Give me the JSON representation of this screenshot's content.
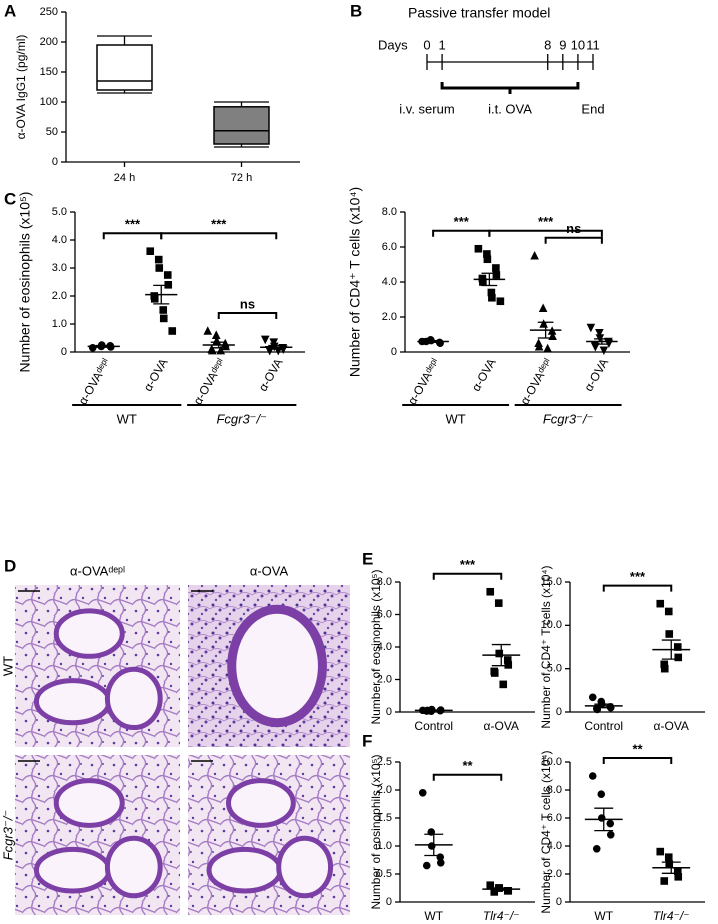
{
  "chart_data": [
    {
      "type": "box",
      "panel": "A",
      "ylabel": "α-OVA IgG1 (pg/ml)",
      "categories": [
        "24 h",
        "72 h"
      ],
      "min": [
        115,
        25
      ],
      "q1": [
        120,
        30
      ],
      "median": [
        135,
        52
      ],
      "q3": [
        195,
        92
      ],
      "max": [
        210,
        100
      ],
      "colors": [
        "#ffffff",
        "#808080"
      ],
      "ylim": [
        0,
        250
      ],
      "yticks": [
        0,
        50,
        100,
        150,
        200,
        250
      ]
    },
    {
      "type": "timeline",
      "panel": "B",
      "title": "Passive transfer model",
      "axis_label": "Days",
      "xlim": [
        0,
        11
      ],
      "xticks": [
        0,
        1,
        8,
        9,
        10,
        11
      ],
      "annotations": [
        {
          "x": 0,
          "label": "i.v. serum"
        },
        {
          "from": 1,
          "to": 10,
          "label": "i.t. OVA"
        },
        {
          "x": 11,
          "label": "End"
        }
      ]
    },
    {
      "type": "dot",
      "panel": "C",
      "ylabel": "Number of eosinophils (x10⁵)",
      "ylim": [
        0,
        5
      ],
      "yticks": [
        0,
        {
          "value": 1,
          "label": "1.0"
        },
        {
          "value": 2,
          "label": "2.0"
        },
        {
          "value": 3,
          "label": "3.0"
        },
        {
          "value": 4,
          "label": "4.0"
        },
        {
          "value": 5,
          "label": "5.0"
        }
      ],
      "categories": [
        "α-OVAᵈᵉᵖˡ",
        "α-OVA",
        "α-OVAᵈᵉᵖˡ",
        "α-OVA"
      ],
      "markers": [
        "circle",
        "square",
        "triangle",
        "triangle-down"
      ],
      "points": [
        [
          0.15,
          0.2,
          0.25,
          0.22,
          0.18
        ],
        [
          3.6,
          3.3,
          3.0,
          2.75,
          2.4,
          2.0,
          1.9,
          1.5,
          1.2,
          0.75
        ],
        [
          0.75,
          0.6,
          0.4,
          0.3,
          0.2,
          0.1,
          0.05,
          0.05
        ],
        [
          0.45,
          0.35,
          0.2,
          0.15,
          0.1,
          0.08,
          0.05,
          0.05
        ]
      ],
      "means": [
        0.2,
        2.05,
        0.25,
        0.17
      ],
      "sems": [
        0.03,
        0.33,
        0.1,
        0.06
      ],
      "comparisons": [
        {
          "pair": [
            0,
            1
          ],
          "label": "***"
        },
        {
          "pair": [
            1,
            3
          ],
          "label": "***"
        },
        {
          "pair": [
            2,
            3
          ],
          "label": "ns"
        }
      ],
      "groups": [
        {
          "label": "WT",
          "categories": [
            0,
            1
          ]
        },
        {
          "label": "Fcgr3⁻/⁻",
          "categories": [
            2,
            3
          ]
        }
      ]
    },
    {
      "type": "dot",
      "ylabel": "Number of CD4⁺ T cells (x10⁴)",
      "ylim": [
        0,
        8
      ],
      "yticks": [
        0,
        {
          "value": 2,
          "label": "2.0"
        },
        {
          "value": 4,
          "label": "4.0"
        },
        {
          "value": 6,
          "label": "6.0"
        },
        {
          "value": 8,
          "label": "8.0"
        }
      ],
      "categories": [
        "α-OVAᵈᵉᵖˡ",
        "α-OVA",
        "α-OVAᵈᵉᵖˡ",
        "α-OVA"
      ],
      "markers": [
        "circle",
        "square",
        "triangle",
        "triangle-down"
      ],
      "points": [
        [
          0.6,
          0.7,
          0.65,
          0.55,
          0.5,
          0.6
        ],
        [
          5.9,
          5.6,
          5.3,
          4.8,
          4.4,
          4.2,
          4.0,
          3.4,
          3.1,
          2.9
        ],
        [
          5.5,
          2.5,
          1.6,
          1.2,
          0.9,
          0.5,
          0.3,
          0.2
        ],
        [
          1.4,
          1.1,
          0.8,
          0.6,
          0.5,
          0.4,
          0.3,
          0.1
        ]
      ],
      "means": [
        0.6,
        4.15,
        1.25,
        0.6
      ],
      "sems": [
        0.05,
        0.35,
        0.45,
        0.15
      ],
      "comparisons": [
        {
          "pair": [
            0,
            1
          ],
          "label": "***"
        },
        {
          "pair": [
            1,
            3
          ],
          "label": "***"
        },
        {
          "pair": [
            2,
            3
          ],
          "label": "ns"
        }
      ],
      "groups": [
        {
          "label": "WT",
          "categories": [
            0,
            1
          ]
        },
        {
          "label": "Fcgr3⁻/⁻",
          "categories": [
            2,
            3
          ]
        }
      ]
    },
    {
      "type": "dot",
      "panel": "E",
      "ylabel": "Number of eosinophils (x10⁵)",
      "ylim": [
        0,
        8
      ],
      "yticks": [
        0,
        {
          "value": 2,
          "label": "2.0"
        },
        {
          "value": 4,
          "label": "4.0"
        },
        {
          "value": 6,
          "label": "6.0"
        },
        {
          "value": 8,
          "label": "8.0"
        }
      ],
      "categories": [
        "Control",
        "α-OVA"
      ],
      "markers": [
        "circle",
        "square"
      ],
      "points": [
        [
          0.1,
          0.05,
          0.15,
          0.08,
          0.12,
          0.06,
          0.1
        ],
        [
          7.4,
          6.7,
          3.6,
          3.2,
          2.9,
          2.5,
          2.4,
          1.7
        ]
      ],
      "means": [
        0.1,
        3.5
      ],
      "sems": [
        0.02,
        0.65
      ],
      "comparisons": [
        {
          "pair": [
            0,
            1
          ],
          "label": "***"
        }
      ]
    },
    {
      "type": "dot",
      "ylabel": "Number of CD4⁺ T cells (x10⁴)",
      "ylim": [
        0,
        15
      ],
      "yticks": [
        0,
        {
          "value": 5,
          "label": "5.0"
        },
        {
          "value": 10,
          "label": "10.0"
        },
        {
          "value": 15,
          "label": "15.0"
        }
      ],
      "categories": [
        "Control",
        "α-OVA"
      ],
      "markers": [
        "circle",
        "square"
      ],
      "points": [
        [
          1.7,
          1.2,
          0.9,
          0.6,
          0.5,
          0.4,
          0.3
        ],
        [
          12.5,
          11.6,
          9.0,
          7.5,
          6.3,
          5.5,
          5.0
        ]
      ],
      "means": [
        0.7,
        7.2
      ],
      "sems": [
        0.2,
        1.1
      ],
      "comparisons": [
        {
          "pair": [
            0,
            1
          ],
          "label": "***"
        }
      ]
    },
    {
      "type": "dot",
      "panel": "F",
      "ylabel": "Number of eosinophils (x10⁵)",
      "ylim": [
        0,
        2.5
      ],
      "yticks": [
        0,
        {
          "value": 0.5,
          "label": "0.5"
        },
        {
          "value": 1,
          "label": "1.0"
        },
        {
          "value": 1.5,
          "label": "1.5"
        },
        {
          "value": 2,
          "label": "2.0"
        },
        {
          "value": 2.5,
          "label": "2.5"
        }
      ],
      "categories": [
        "WT",
        "Tlr4⁻/⁻"
      ],
      "markers": [
        "circle",
        "square"
      ],
      "points": [
        [
          1.95,
          1.25,
          1.0,
          0.8,
          0.7,
          0.65
        ],
        [
          0.3,
          0.25,
          0.25,
          0.2,
          0.2,
          0.18
        ]
      ],
      "means": [
        1.02,
        0.23
      ],
      "sems": [
        0.19,
        0.02
      ],
      "comparisons": [
        {
          "pair": [
            0,
            1
          ],
          "label": "**"
        }
      ]
    },
    {
      "type": "dot",
      "ylabel": "Number of CD4⁺ T cells (x10⁴)",
      "ylim": [
        0,
        10
      ],
      "yticks": [
        0,
        {
          "value": 2,
          "label": "2.0"
        },
        {
          "value": 4,
          "label": "4.0"
        },
        {
          "value": 6,
          "label": "6.0"
        },
        {
          "value": 8,
          "label": "8.0"
        },
        {
          "value": 10,
          "label": "10.0"
        }
      ],
      "categories": [
        "WT",
        "Tlr4⁻/⁻"
      ],
      "markers": [
        "circle",
        "square"
      ],
      "points": [
        [
          9.0,
          7.7,
          6.0,
          5.6,
          4.8,
          3.8
        ],
        [
          3.6,
          3.2,
          2.7,
          2.2,
          1.8,
          1.5
        ]
      ],
      "means": [
        5.9,
        2.45
      ],
      "sems": [
        0.8,
        0.4
      ],
      "comparisons": [
        {
          "pair": [
            0,
            1
          ],
          "label": "**"
        }
      ]
    }
  ],
  "histology": {
    "panel": "D",
    "columns": [
      "α-OVAᵈᵉᵖˡ",
      "α-OVA"
    ],
    "rows": [
      "WT",
      "Fcgr3⁻/⁻"
    ]
  }
}
